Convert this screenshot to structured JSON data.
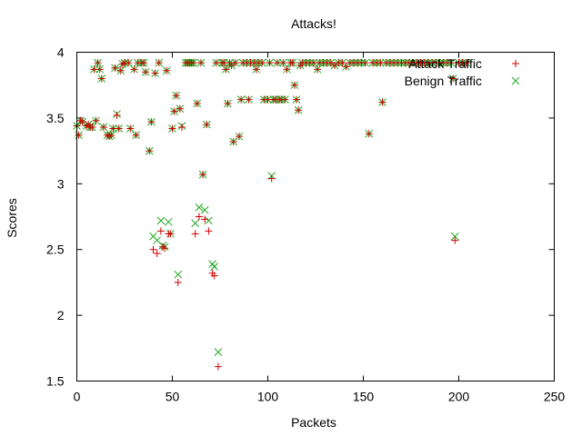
{
  "chart_data": {
    "type": "scatter",
    "title": "Attacks!",
    "xlabel": "Packets",
    "ylabel": "Scores",
    "xlim": [
      0,
      250
    ],
    "ylim": [
      1.5,
      4
    ],
    "xticks": [
      "0",
      "50",
      "100",
      "150",
      "200",
      "250"
    ],
    "yticks": [
      "1.5",
      "2",
      "2.5",
      "3",
      "3.5",
      "4"
    ],
    "grid": false,
    "legend_position": "top-right",
    "series": [
      {
        "name": "Attack Traffic",
        "marker": "plus",
        "color": "#cc0000",
        "points": [
          [
            0,
            3.44
          ],
          [
            1,
            3.37
          ],
          [
            2,
            3.48
          ],
          [
            3,
            3.47
          ],
          [
            5,
            3.44
          ],
          [
            6,
            3.45
          ],
          [
            7,
            3.43
          ],
          [
            8,
            3.43
          ],
          [
            9,
            3.87
          ],
          [
            10,
            3.48
          ],
          [
            11,
            3.92
          ],
          [
            12,
            3.87
          ],
          [
            13,
            3.8
          ],
          [
            14,
            3.43
          ],
          [
            16,
            3.37
          ],
          [
            17,
            3.36
          ],
          [
            18,
            3.37
          ],
          [
            19,
            3.42
          ],
          [
            20,
            3.88
          ],
          [
            21,
            3.52
          ],
          [
            22,
            3.42
          ],
          [
            23,
            3.86
          ],
          [
            24,
            3.91
          ],
          [
            25,
            3.92
          ],
          [
            27,
            3.92
          ],
          [
            28,
            3.42
          ],
          [
            30,
            3.87
          ],
          [
            31,
            3.37
          ],
          [
            32,
            3.92
          ],
          [
            34,
            3.92
          ],
          [
            35,
            3.92
          ],
          [
            36,
            3.85
          ],
          [
            38,
            3.25
          ],
          [
            39,
            3.47
          ],
          [
            40,
            2.5
          ],
          [
            41,
            3.84
          ],
          [
            42,
            2.47
          ],
          [
            43,
            3.92
          ],
          [
            44,
            2.64
          ],
          [
            45,
            2.52
          ],
          [
            46,
            2.51
          ],
          [
            47,
            3.86
          ],
          [
            48,
            2.62
          ],
          [
            49,
            2.62
          ],
          [
            50,
            3.42
          ],
          [
            51,
            3.55
          ],
          [
            52,
            3.67
          ],
          [
            53,
            2.25
          ],
          [
            54,
            3.57
          ],
          [
            55,
            3.43
          ],
          [
            57,
            3.92
          ],
          [
            58,
            3.92
          ],
          [
            59,
            3.92
          ],
          [
            60,
            3.92
          ],
          [
            61,
            3.92
          ],
          [
            62,
            2.62
          ],
          [
            63,
            3.61
          ],
          [
            64,
            2.75
          ],
          [
            65,
            3.92
          ],
          [
            66,
            3.07
          ],
          [
            67,
            2.73
          ],
          [
            68,
            3.45
          ],
          [
            69,
            2.64
          ],
          [
            71,
            2.32
          ],
          [
            72,
            2.3
          ],
          [
            73,
            3.92
          ],
          [
            74,
            1.61
          ],
          [
            76,
            3.92
          ],
          [
            77,
            3.92
          ],
          [
            78,
            3.87
          ],
          [
            79,
            3.61
          ],
          [
            80,
            3.92
          ],
          [
            81,
            3.9
          ],
          [
            82,
            3.32
          ],
          [
            83,
            3.92
          ],
          [
            85,
            3.36
          ],
          [
            86,
            3.64
          ],
          [
            87,
            3.92
          ],
          [
            89,
            3.92
          ],
          [
            90,
            3.64
          ],
          [
            91,
            3.92
          ],
          [
            93,
            3.92
          ],
          [
            94,
            3.87
          ],
          [
            95,
            3.92
          ],
          [
            97,
            3.92
          ],
          [
            98,
            3.64
          ],
          [
            100,
            3.64
          ],
          [
            101,
            3.92
          ],
          [
            102,
            3.04
          ],
          [
            103,
            3.64
          ],
          [
            104,
            3.64
          ],
          [
            105,
            3.92
          ],
          [
            106,
            3.64
          ],
          [
            107,
            3.64
          ],
          [
            108,
            3.92
          ],
          [
            109,
            3.64
          ],
          [
            110,
            3.87
          ],
          [
            112,
            3.92
          ],
          [
            113,
            3.92
          ],
          [
            114,
            3.75
          ],
          [
            115,
            3.64
          ],
          [
            116,
            3.56
          ],
          [
            117,
            3.9
          ],
          [
            118,
            3.92
          ],
          [
            120,
            3.92
          ],
          [
            122,
            3.92
          ],
          [
            124,
            3.92
          ],
          [
            126,
            3.87
          ],
          [
            127,
            3.92
          ],
          [
            129,
            3.92
          ],
          [
            131,
            3.92
          ],
          [
            133,
            3.92
          ],
          [
            135,
            3.9
          ],
          [
            137,
            3.92
          ],
          [
            139,
            3.92
          ],
          [
            141,
            3.89
          ],
          [
            143,
            3.92
          ],
          [
            145,
            3.92
          ],
          [
            147,
            3.92
          ],
          [
            149,
            3.92
          ],
          [
            151,
            3.92
          ],
          [
            153,
            3.38
          ],
          [
            155,
            3.92
          ],
          [
            157,
            3.92
          ],
          [
            159,
            3.92
          ],
          [
            160,
            3.62
          ],
          [
            162,
            3.92
          ],
          [
            164,
            3.92
          ],
          [
            166,
            3.92
          ],
          [
            168,
            3.92
          ],
          [
            170,
            3.92
          ],
          [
            172,
            3.92
          ],
          [
            174,
            3.92
          ],
          [
            176,
            3.92
          ],
          [
            178,
            3.92
          ],
          [
            180,
            3.92
          ],
          [
            182,
            3.92
          ],
          [
            184,
            3.92
          ],
          [
            186,
            3.92
          ],
          [
            188,
            3.92
          ],
          [
            190,
            3.92
          ],
          [
            192,
            3.92
          ],
          [
            194,
            3.92
          ],
          [
            196,
            3.92
          ],
          [
            197,
            3.8
          ],
          [
            198,
            2.57
          ],
          [
            200,
            3.92
          ],
          [
            202,
            3.92
          ],
          [
            204,
            3.92
          ]
        ]
      },
      {
        "name": "Benign Traffic",
        "marker": "cross",
        "color": "#22aa22",
        "points": [
          [
            0,
            3.44
          ],
          [
            1,
            3.37
          ],
          [
            2,
            3.48
          ],
          [
            3,
            3.47
          ],
          [
            5,
            3.44
          ],
          [
            6,
            3.45
          ],
          [
            7,
            3.43
          ],
          [
            8,
            3.43
          ],
          [
            9,
            3.87
          ],
          [
            10,
            3.48
          ],
          [
            11,
            3.92
          ],
          [
            12,
            3.87
          ],
          [
            13,
            3.8
          ],
          [
            14,
            3.43
          ],
          [
            16,
            3.37
          ],
          [
            17,
            3.36
          ],
          [
            18,
            3.37
          ],
          [
            19,
            3.42
          ],
          [
            20,
            3.88
          ],
          [
            21,
            3.53
          ],
          [
            22,
            3.42
          ],
          [
            23,
            3.86
          ],
          [
            24,
            3.91
          ],
          [
            25,
            3.92
          ],
          [
            27,
            3.92
          ],
          [
            28,
            3.42
          ],
          [
            30,
            3.87
          ],
          [
            31,
            3.37
          ],
          [
            32,
            3.92
          ],
          [
            34,
            3.92
          ],
          [
            35,
            3.92
          ],
          [
            36,
            3.85
          ],
          [
            38,
            3.25
          ],
          [
            39,
            3.47
          ],
          [
            40,
            2.6
          ],
          [
            41,
            3.84
          ],
          [
            42,
            2.57
          ],
          [
            43,
            3.92
          ],
          [
            44,
            2.72
          ],
          [
            45,
            2.53
          ],
          [
            46,
            2.52
          ],
          [
            47,
            3.86
          ],
          [
            48,
            2.71
          ],
          [
            49,
            2.62
          ],
          [
            50,
            3.42
          ],
          [
            51,
            3.55
          ],
          [
            52,
            3.67
          ],
          [
            53,
            2.31
          ],
          [
            54,
            3.57
          ],
          [
            55,
            3.44
          ],
          [
            57,
            3.92
          ],
          [
            58,
            3.92
          ],
          [
            59,
            3.92
          ],
          [
            60,
            3.92
          ],
          [
            61,
            3.92
          ],
          [
            62,
            2.7
          ],
          [
            63,
            3.61
          ],
          [
            64,
            2.82
          ],
          [
            65,
            3.92
          ],
          [
            66,
            3.07
          ],
          [
            67,
            2.8
          ],
          [
            68,
            3.45
          ],
          [
            69,
            2.72
          ],
          [
            71,
            2.39
          ],
          [
            72,
            2.37
          ],
          [
            73,
            3.92
          ],
          [
            74,
            1.72
          ],
          [
            76,
            3.92
          ],
          [
            77,
            3.92
          ],
          [
            78,
            3.87
          ],
          [
            79,
            3.61
          ],
          [
            80,
            3.92
          ],
          [
            81,
            3.9
          ],
          [
            82,
            3.32
          ],
          [
            83,
            3.92
          ],
          [
            85,
            3.36
          ],
          [
            86,
            3.64
          ],
          [
            87,
            3.92
          ],
          [
            89,
            3.92
          ],
          [
            90,
            3.64
          ],
          [
            91,
            3.92
          ],
          [
            93,
            3.92
          ],
          [
            94,
            3.87
          ],
          [
            95,
            3.92
          ],
          [
            97,
            3.92
          ],
          [
            98,
            3.64
          ],
          [
            100,
            3.64
          ],
          [
            101,
            3.92
          ],
          [
            102,
            3.06
          ],
          [
            103,
            3.64
          ],
          [
            104,
            3.64
          ],
          [
            105,
            3.92
          ],
          [
            106,
            3.64
          ],
          [
            107,
            3.64
          ],
          [
            108,
            3.92
          ],
          [
            109,
            3.64
          ],
          [
            110,
            3.87
          ],
          [
            112,
            3.92
          ],
          [
            113,
            3.92
          ],
          [
            114,
            3.75
          ],
          [
            115,
            3.64
          ],
          [
            116,
            3.56
          ],
          [
            117,
            3.9
          ],
          [
            118,
            3.92
          ],
          [
            120,
            3.92
          ],
          [
            122,
            3.92
          ],
          [
            124,
            3.92
          ],
          [
            126,
            3.87
          ],
          [
            127,
            3.92
          ],
          [
            129,
            3.92
          ],
          [
            131,
            3.92
          ],
          [
            133,
            3.92
          ],
          [
            135,
            3.9
          ],
          [
            137,
            3.92
          ],
          [
            139,
            3.92
          ],
          [
            141,
            3.89
          ],
          [
            143,
            3.92
          ],
          [
            145,
            3.92
          ],
          [
            147,
            3.92
          ],
          [
            149,
            3.92
          ],
          [
            151,
            3.92
          ],
          [
            153,
            3.38
          ],
          [
            155,
            3.92
          ],
          [
            157,
            3.92
          ],
          [
            159,
            3.92
          ],
          [
            160,
            3.62
          ],
          [
            162,
            3.92
          ],
          [
            164,
            3.92
          ],
          [
            166,
            3.92
          ],
          [
            168,
            3.92
          ],
          [
            170,
            3.92
          ],
          [
            172,
            3.92
          ],
          [
            174,
            3.92
          ],
          [
            176,
            3.92
          ],
          [
            178,
            3.92
          ],
          [
            180,
            3.92
          ],
          [
            182,
            3.92
          ],
          [
            184,
            3.92
          ],
          [
            186,
            3.92
          ],
          [
            188,
            3.92
          ],
          [
            190,
            3.92
          ],
          [
            192,
            3.92
          ],
          [
            194,
            3.92
          ],
          [
            196,
            3.92
          ],
          [
            197,
            3.8
          ],
          [
            198,
            2.6
          ],
          [
            200,
            3.92
          ],
          [
            202,
            3.92
          ],
          [
            204,
            3.92
          ]
        ]
      }
    ]
  }
}
